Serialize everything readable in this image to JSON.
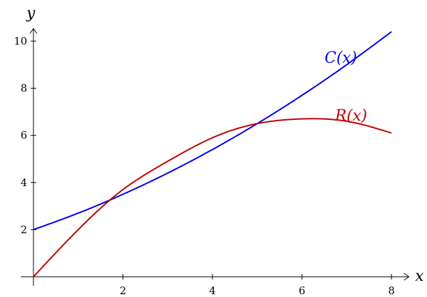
{
  "chart_data": {
    "type": "line",
    "xlabel": "x",
    "ylabel": "y",
    "xlim": [
      0,
      8
    ],
    "ylim": [
      0,
      10.4
    ],
    "x_ticks": [
      2,
      4,
      6,
      8
    ],
    "y_ticks": [
      2,
      4,
      6,
      8,
      10
    ],
    "grid": false,
    "series": [
      {
        "name": "C(x)",
        "color": "#0000ee",
        "points": [
          [
            0,
            2.0
          ],
          [
            1,
            2.7
          ],
          [
            2,
            3.5
          ],
          [
            3,
            4.4
          ],
          [
            4,
            5.4
          ],
          [
            5,
            6.5
          ],
          [
            6,
            7.7
          ],
          [
            7,
            9.0
          ],
          [
            8,
            10.4
          ]
        ]
      },
      {
        "name": "R(x)",
        "color": "#c00000",
        "points": [
          [
            0,
            0
          ],
          [
            1,
            2.0
          ],
          [
            2,
            3.7
          ],
          [
            3,
            4.9
          ],
          [
            4,
            5.9
          ],
          [
            5,
            6.5
          ],
          [
            6,
            6.7
          ],
          [
            7,
            6.6
          ],
          [
            8,
            6.1
          ]
        ]
      }
    ]
  }
}
